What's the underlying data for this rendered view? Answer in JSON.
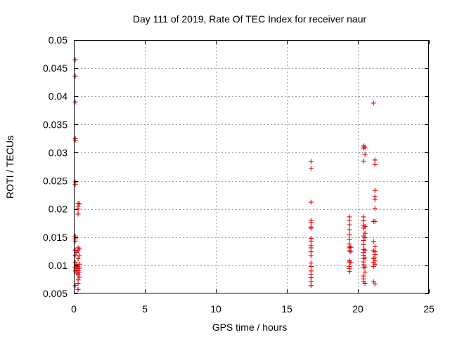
{
  "chart_data": {
    "type": "scatter",
    "title": "Day 111 of 2019, Rate Of TEC Index for receiver naur",
    "xlabel": "GPS time / hours",
    "ylabel": "ROTI / TECUs",
    "xlim": [
      0,
      25
    ],
    "ylim": [
      0.005,
      0.05
    ],
    "xticks": [
      0,
      5,
      10,
      15,
      20,
      25
    ],
    "xtick_labels": [
      "0",
      "5",
      "10",
      "15",
      "20",
      "25"
    ],
    "yticks": [
      0.005,
      0.01,
      0.015,
      0.02,
      0.025,
      0.03,
      0.035,
      0.04,
      0.045,
      0.05
    ],
    "ytick_labels": [
      "0.005",
      "0.01",
      "0.015",
      "0.02",
      "0.025",
      "0.03",
      "0.035",
      "0.04",
      "0.045",
      "0.05"
    ],
    "grid": true,
    "marker": "+",
    "color": "#dd0000",
    "series": [
      {
        "name": "ROTI",
        "points": [
          [
            0.1,
            0.0465
          ],
          [
            0.1,
            0.0436
          ],
          [
            0.1,
            0.039
          ],
          [
            0.1,
            0.0325
          ],
          [
            0.1,
            0.0322
          ],
          [
            0.1,
            0.0248
          ],
          [
            0.1,
            0.0244
          ],
          [
            0.1,
            0.0152
          ],
          [
            0.1,
            0.0147
          ],
          [
            0.1,
            0.0143
          ],
          [
            0.1,
            0.0127
          ],
          [
            0.1,
            0.0118
          ],
          [
            0.1,
            0.0105
          ],
          [
            0.1,
            0.0096
          ],
          [
            0.1,
            0.009
          ],
          [
            0.1,
            0.0064
          ],
          [
            0.2,
            0.0123
          ],
          [
            0.2,
            0.0101
          ],
          [
            0.2,
            0.0094
          ],
          [
            0.2,
            0.0086
          ],
          [
            0.3,
            0.021
          ],
          [
            0.3,
            0.0205
          ],
          [
            0.3,
            0.02
          ],
          [
            0.3,
            0.0191
          ],
          [
            0.3,
            0.0131
          ],
          [
            0.3,
            0.0126
          ],
          [
            0.3,
            0.0112
          ],
          [
            0.3,
            0.0098
          ],
          [
            0.3,
            0.0091
          ],
          [
            0.3,
            0.0083
          ],
          [
            0.3,
            0.0074
          ],
          [
            0.3,
            0.0068
          ],
          [
            0.3,
            0.0057
          ],
          [
            0.4,
            0.0209
          ],
          [
            0.4,
            0.0129
          ],
          [
            0.4,
            0.0117
          ],
          [
            0.4,
            0.0102
          ],
          [
            0.4,
            0.0095
          ],
          [
            0.4,
            0.0088
          ],
          [
            0.4,
            0.0079
          ],
          [
            16.7,
            0.0284
          ],
          [
            16.7,
            0.0272
          ],
          [
            16.7,
            0.0212
          ],
          [
            16.7,
            0.018
          ],
          [
            16.7,
            0.0176
          ],
          [
            16.7,
            0.0168
          ],
          [
            16.7,
            0.0166
          ],
          [
            16.7,
            0.0148
          ],
          [
            16.7,
            0.0143
          ],
          [
            16.7,
            0.0135
          ],
          [
            16.7,
            0.0131
          ],
          [
            16.7,
            0.0124
          ],
          [
            16.7,
            0.0117
          ],
          [
            16.7,
            0.0104
          ],
          [
            16.7,
            0.0098
          ],
          [
            16.7,
            0.009
          ],
          [
            16.7,
            0.0084
          ],
          [
            16.7,
            0.0078
          ],
          [
            16.7,
            0.0071
          ],
          [
            16.7,
            0.0064
          ],
          [
            19.4,
            0.0186
          ],
          [
            19.4,
            0.018
          ],
          [
            19.4,
            0.0172
          ],
          [
            19.4,
            0.0163
          ],
          [
            19.4,
            0.0154
          ],
          [
            19.4,
            0.0146
          ],
          [
            19.4,
            0.0138
          ],
          [
            19.4,
            0.0134
          ],
          [
            19.4,
            0.0131
          ],
          [
            19.4,
            0.0126
          ],
          [
            19.4,
            0.0108
          ],
          [
            19.4,
            0.0106
          ],
          [
            19.4,
            0.0098
          ],
          [
            19.4,
            0.0094
          ],
          [
            19.4,
            0.0089
          ],
          [
            19.5,
            0.0132
          ],
          [
            19.5,
            0.0124
          ],
          [
            19.5,
            0.0105
          ],
          [
            20.4,
            0.0312
          ],
          [
            20.4,
            0.0308
          ],
          [
            20.4,
            0.0285
          ],
          [
            20.4,
            0.0186
          ],
          [
            20.4,
            0.0179
          ],
          [
            20.4,
            0.0171
          ],
          [
            20.4,
            0.0166
          ],
          [
            20.4,
            0.0152
          ],
          [
            20.4,
            0.0144
          ],
          [
            20.4,
            0.0137
          ],
          [
            20.4,
            0.0128
          ],
          [
            20.4,
            0.0123
          ],
          [
            20.4,
            0.0118
          ],
          [
            20.4,
            0.0112
          ],
          [
            20.4,
            0.0106
          ],
          [
            20.4,
            0.0101
          ],
          [
            20.4,
            0.0096
          ],
          [
            20.4,
            0.0081
          ],
          [
            20.4,
            0.0076
          ],
          [
            20.4,
            0.0071
          ],
          [
            20.5,
            0.031
          ],
          [
            20.5,
            0.0297
          ],
          [
            20.5,
            0.0169
          ],
          [
            20.5,
            0.0157
          ],
          [
            20.5,
            0.0149
          ],
          [
            20.5,
            0.0127
          ],
          [
            20.5,
            0.0113
          ],
          [
            20.5,
            0.0097
          ],
          [
            20.5,
            0.0088
          ],
          [
            20.5,
            0.0068
          ],
          [
            21.1,
            0.0388
          ],
          [
            21.1,
            0.0178
          ],
          [
            21.1,
            0.0142
          ],
          [
            21.1,
            0.0126
          ],
          [
            21.1,
            0.0112
          ],
          [
            21.1,
            0.0105
          ],
          [
            21.1,
            0.0098
          ],
          [
            21.1,
            0.0071
          ],
          [
            21.2,
            0.0287
          ],
          [
            21.2,
            0.0279
          ],
          [
            21.2,
            0.0233
          ],
          [
            21.2,
            0.0222
          ],
          [
            21.2,
            0.0217
          ],
          [
            21.2,
            0.0201
          ],
          [
            21.2,
            0.0178
          ],
          [
            21.2,
            0.0133
          ],
          [
            21.2,
            0.0124
          ],
          [
            21.2,
            0.0119
          ],
          [
            21.2,
            0.0113
          ],
          [
            21.2,
            0.0108
          ],
          [
            21.2,
            0.0102
          ],
          [
            21.2,
            0.0067
          ]
        ]
      }
    ]
  }
}
